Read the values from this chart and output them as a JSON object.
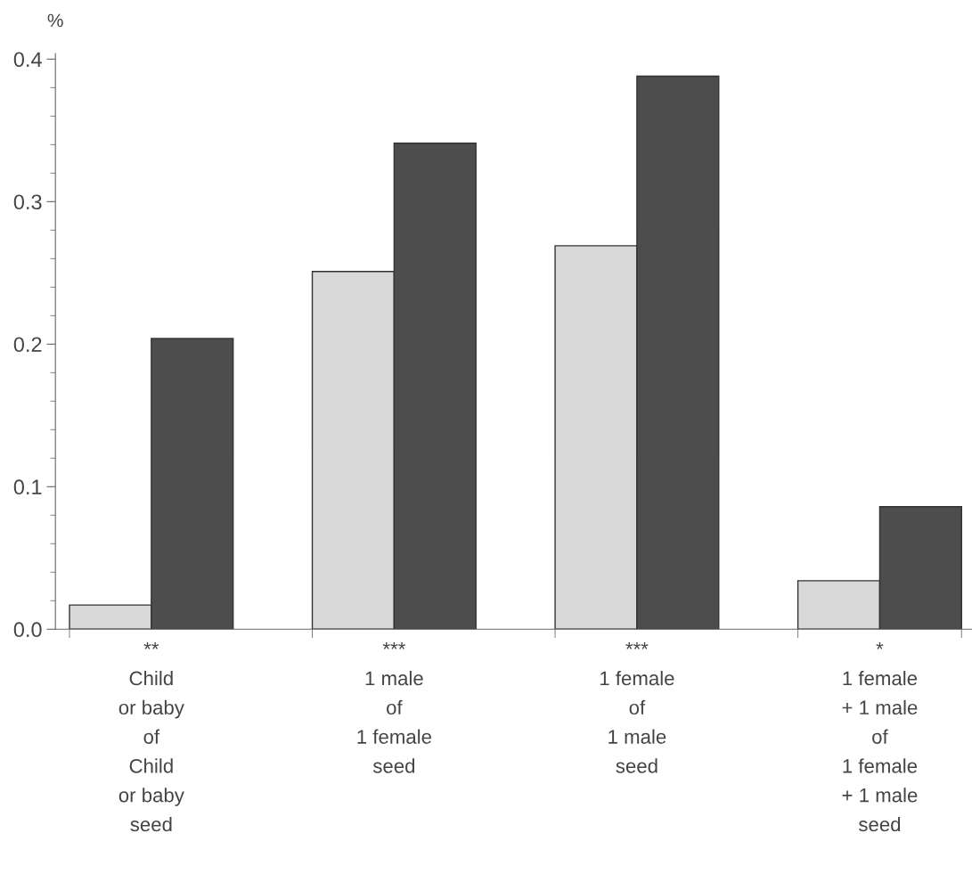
{
  "chart_data": {
    "type": "bar",
    "ylabel": "%",
    "categories": [
      "**\nChild\nor baby\nof\nChild\nor baby\nseed",
      "***\n1 male\nof\n1 female\nseed",
      "***\n1 female\nof\n1 male\nseed",
      "*\n1 female\n+ 1 male\nof\n1 female\n+ 1 male\nseed"
    ],
    "series": [
      {
        "color": "#d9d9d9",
        "values": [
          0.017,
          0.251,
          0.269,
          0.034
        ]
      },
      {
        "color": "#4d4d4d",
        "values": [
          0.204,
          0.341,
          0.388,
          0.086
        ]
      }
    ],
    "ylim": [
      0,
      0.404
    ],
    "yticks": [
      {
        "value": 0,
        "label": "0.0"
      },
      0.1,
      0.2,
      0.3,
      0.4
    ],
    "grid": false,
    "legend": false
  }
}
